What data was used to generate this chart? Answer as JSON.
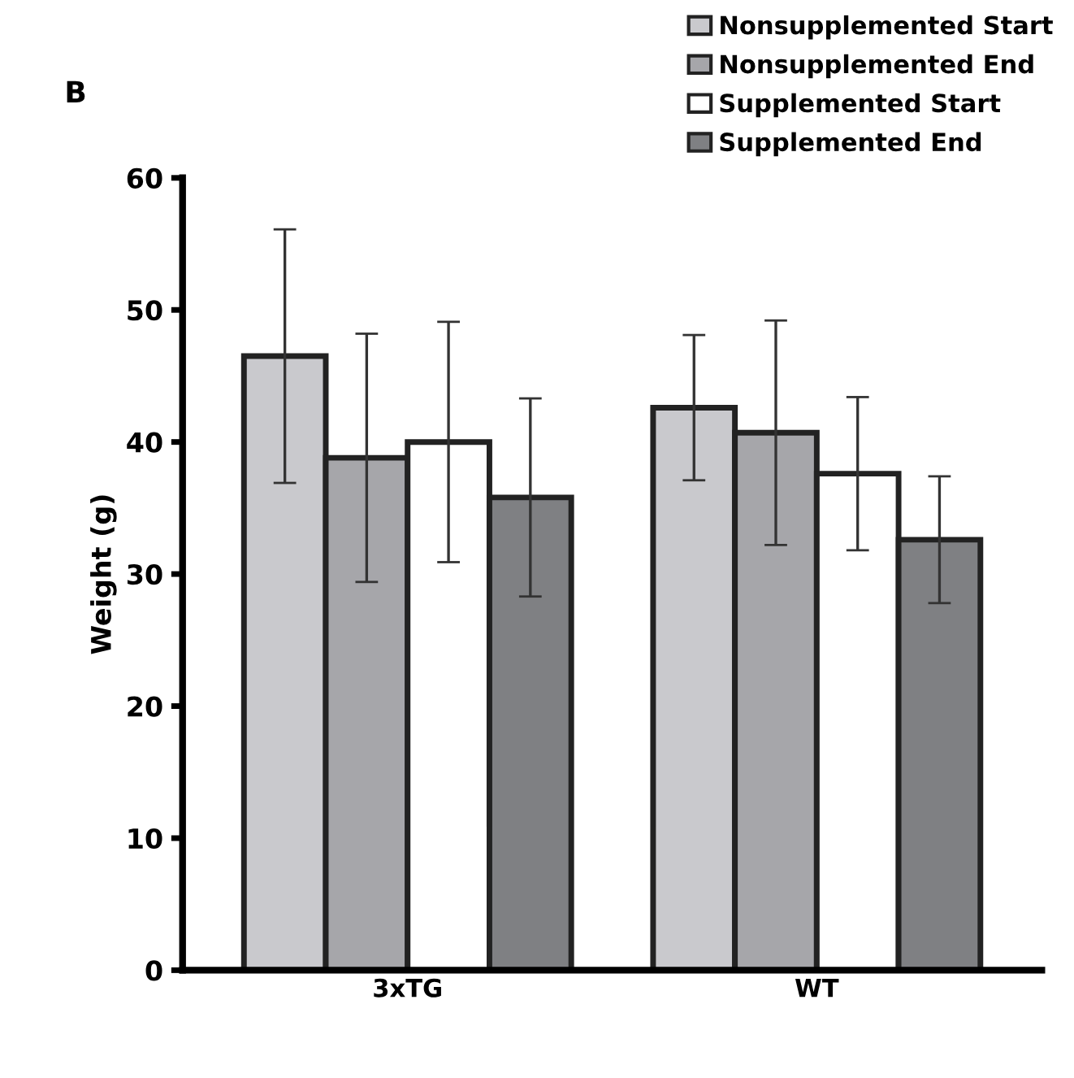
{
  "chart_data": {
    "type": "bar",
    "title": "B",
    "ylabel": "Weight (g)",
    "categories": [
      "3xTG",
      "WT"
    ],
    "series": [
      {
        "name": "Nonsupplemented Start",
        "color": "#c9c9cd",
        "values": [
          46.5,
          42.6
        ],
        "errors": [
          9.6,
          5.5
        ]
      },
      {
        "name": "Nonsupplemented End",
        "color": "#a6a6aa",
        "values": [
          38.8,
          40.7
        ],
        "errors": [
          9.4,
          8.5
        ]
      },
      {
        "name": "Supplemented Start",
        "color": "#ffffff",
        "values": [
          40.0,
          37.6
        ],
        "errors": [
          9.1,
          5.8
        ]
      },
      {
        "name": "Supplemented End",
        "color": "#7f8083",
        "values": [
          35.8,
          32.6
        ],
        "errors": [
          7.5,
          4.8
        ]
      }
    ],
    "ylim": [
      0,
      60
    ],
    "yticks": [
      0,
      10,
      20,
      30,
      40,
      50,
      60
    ],
    "grid": false,
    "legend": "top right"
  }
}
